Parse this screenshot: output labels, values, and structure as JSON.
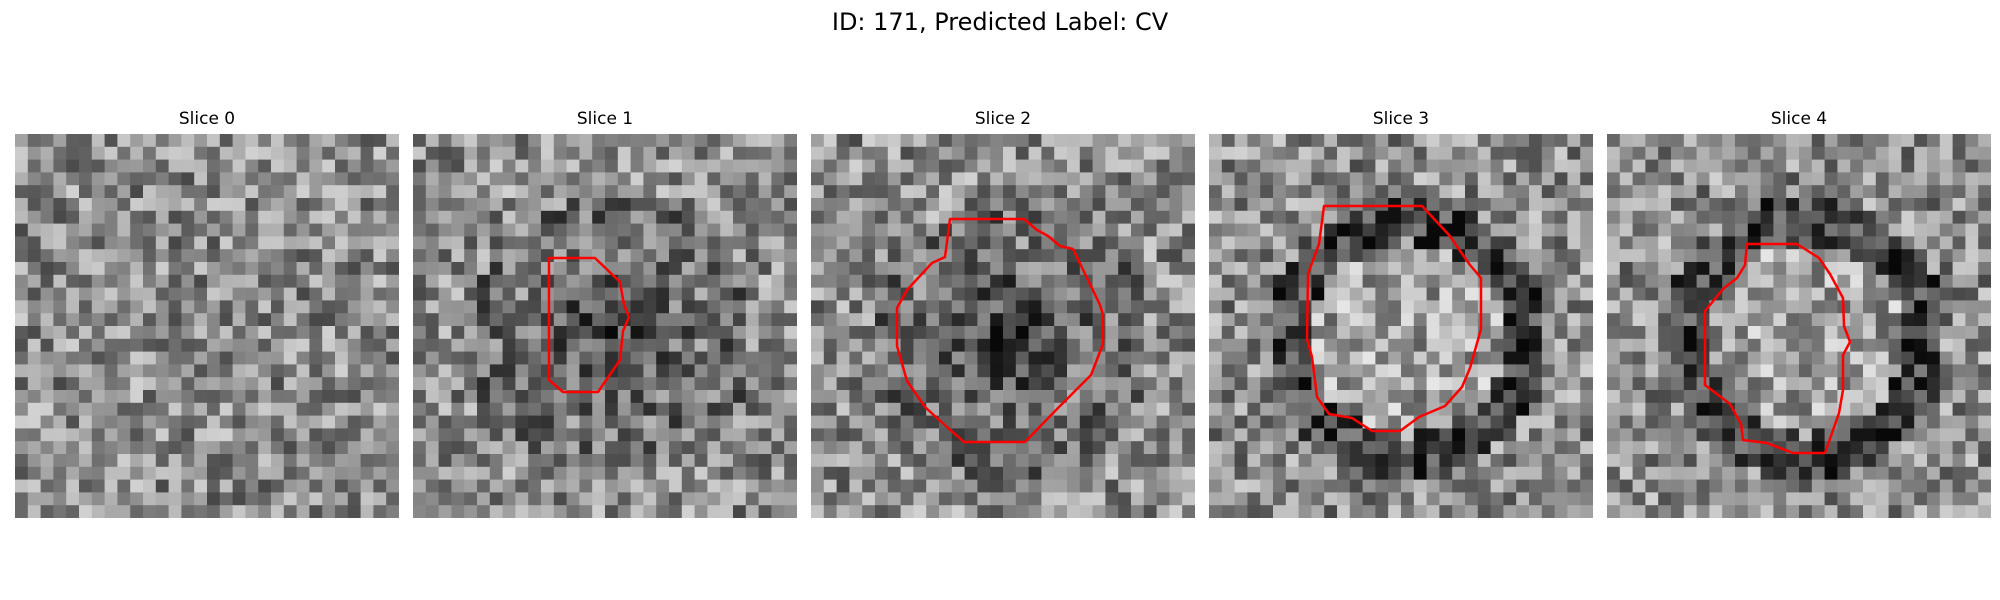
{
  "figure": {
    "title": "ID: 171, Predicted Label: CV",
    "contour_color": "#ff0000"
  },
  "slices": [
    {
      "label": "Slice 0",
      "seed": 11,
      "blob": "none"
    },
    {
      "label": "Slice 1",
      "seed": 23,
      "blob": "dark"
    },
    {
      "label": "Slice 2",
      "seed": 37,
      "blob": "dark"
    },
    {
      "label": "Slice 3",
      "seed": 41,
      "blob": "ring"
    },
    {
      "label": "Slice 4",
      "seed": 53,
      "blob": "ring"
    }
  ]
}
